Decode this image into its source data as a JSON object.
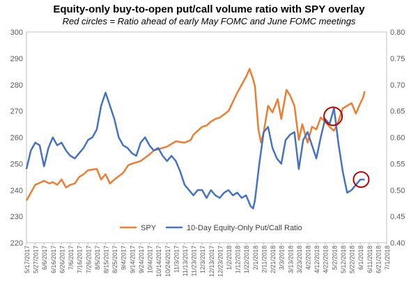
{
  "chart_data": {
    "type": "line",
    "title": "Equity-only buy-to-open put/call volume ratio with SPY overlay",
    "subtitle": "Red circles = Ratio ahead of early May FOMC and June FOMC meetings",
    "left_axis": {
      "min": 220,
      "max": 300,
      "ticks": [
        "220",
        "230",
        "240",
        "250",
        "260",
        "270",
        "280",
        "290",
        "300"
      ]
    },
    "right_axis": {
      "min": 0.4,
      "max": 0.8,
      "ticks": [
        "0.40",
        "0.45",
        "0.50",
        "0.55",
        "0.60",
        "0.65",
        "0.70",
        "0.75",
        "0.80"
      ]
    },
    "x_ticks": [
      "5/17/2017",
      "5/27/2017",
      "6/6/2017",
      "6/16/2017",
      "6/26/2017",
      "7/6/2017",
      "7/16/2017",
      "7/26/2017",
      "8/5/2017",
      "8/15/2017",
      "8/25/2017",
      "9/4/2017",
      "9/14/2017",
      "9/24/2017",
      "10/4/2017",
      "10/14/2017",
      "10/24/2017",
      "11/3/2017",
      "11/13/2017",
      "11/23/2017",
      "12/3/2017",
      "12/13/2017",
      "12/23/2017",
      "1/2/2018",
      "1/12/2018",
      "1/22/2018",
      "2/1/2018",
      "2/11/2018",
      "2/21/2018",
      "3/3/2018",
      "3/13/2018",
      "3/23/2018",
      "4/2/2018",
      "4/12/2018",
      "4/22/2018",
      "5/2/2018",
      "5/12/2018",
      "5/22/2018",
      "6/1/2018",
      "6/11/2018",
      "6/21/2018",
      "7/1/2018"
    ],
    "legend_position": "bottom-center",
    "grid": false,
    "series": [
      {
        "name": "SPY",
        "axis": "left",
        "color": "#ED7D31",
        "points": [
          [
            "5/17/2017",
            236
          ],
          [
            "5/22/2017",
            239
          ],
          [
            "5/27/2017",
            242
          ],
          [
            "6/6/2017",
            243.5
          ],
          [
            "6/12/2017",
            242.5
          ],
          [
            "6/16/2017",
            243
          ],
          [
            "6/21/2017",
            242
          ],
          [
            "6/26/2017",
            244
          ],
          [
            "7/1/2017",
            241
          ],
          [
            "7/6/2017",
            242
          ],
          [
            "7/11/2017",
            242.5
          ],
          [
            "7/16/2017",
            245
          ],
          [
            "7/21/2017",
            246
          ],
          [
            "7/26/2017",
            247.5
          ],
          [
            "8/5/2017",
            248
          ],
          [
            "8/10/2017",
            244
          ],
          [
            "8/15/2017",
            246
          ],
          [
            "8/20/2017",
            242.5
          ],
          [
            "8/25/2017",
            244
          ],
          [
            "9/4/2017",
            246.5
          ],
          [
            "9/10/2017",
            249.5
          ],
          [
            "9/14/2017",
            250
          ],
          [
            "9/24/2017",
            251
          ],
          [
            "10/4/2017",
            253.5
          ],
          [
            "10/9/2017",
            255
          ],
          [
            "10/14/2017",
            255.5
          ],
          [
            "10/24/2017",
            256.5
          ],
          [
            "10/29/2017",
            257.5
          ],
          [
            "11/3/2017",
            258.5
          ],
          [
            "11/13/2017",
            258
          ],
          [
            "11/20/2017",
            259
          ],
          [
            "11/23/2017",
            261
          ],
          [
            "12/3/2017",
            264
          ],
          [
            "12/8/2017",
            264.5
          ],
          [
            "12/13/2017",
            266
          ],
          [
            "12/18/2017",
            267
          ],
          [
            "12/23/2017",
            267.5
          ],
          [
            "1/2/2018",
            270
          ],
          [
            "1/7/2018",
            273.5
          ],
          [
            "1/12/2018",
            277
          ],
          [
            "1/17/2018",
            280
          ],
          [
            "1/22/2018",
            283
          ],
          [
            "1/26/2018",
            286
          ],
          [
            "1/30/2018",
            282
          ],
          [
            "2/1/2018",
            279.5
          ],
          [
            "2/5/2018",
            263
          ],
          [
            "2/8/2018",
            258
          ],
          [
            "2/11/2018",
            262
          ],
          [
            "2/16/2018",
            272
          ],
          [
            "2/21/2018",
            269.5
          ],
          [
            "2/27/2018",
            274.5
          ],
          [
            "3/3/2018",
            267
          ],
          [
            "3/9/2018",
            278
          ],
          [
            "3/13/2018",
            276
          ],
          [
            "3/18/2018",
            272
          ],
          [
            "3/23/2018",
            259
          ],
          [
            "3/27/2018",
            265
          ],
          [
            "4/2/2018",
            258
          ],
          [
            "4/7/2018",
            264
          ],
          [
            "4/12/2018",
            263
          ],
          [
            "4/17/2018",
            267.5
          ],
          [
            "4/22/2018",
            266
          ],
          [
            "4/27/2018",
            264
          ],
          [
            "5/2/2018",
            262.5
          ],
          [
            "5/7/2018",
            266
          ],
          [
            "5/12/2018",
            271
          ],
          [
            "5/17/2018",
            272
          ],
          [
            "5/22/2018",
            273
          ],
          [
            "5/27/2018",
            269
          ],
          [
            "6/1/2018",
            273
          ],
          [
            "6/4/2018",
            275
          ],
          [
            "6/6/2018",
            277.5
          ]
        ]
      },
      {
        "name": "10-Day Equity-Only Put/Call Ratio",
        "axis": "right",
        "color": "#4472C4",
        "points": [
          [
            "5/17/2017",
            0.54
          ],
          [
            "5/22/2017",
            0.575
          ],
          [
            "5/27/2017",
            0.59
          ],
          [
            "6/1/2017",
            0.585
          ],
          [
            "6/6/2017",
            0.545
          ],
          [
            "6/11/2017",
            0.58
          ],
          [
            "6/16/2017",
            0.6
          ],
          [
            "6/21/2017",
            0.585
          ],
          [
            "6/26/2017",
            0.59
          ],
          [
            "7/1/2017",
            0.575
          ],
          [
            "7/6/2017",
            0.565
          ],
          [
            "7/11/2017",
            0.56
          ],
          [
            "7/16/2017",
            0.57
          ],
          [
            "7/21/2017",
            0.58
          ],
          [
            "7/26/2017",
            0.595
          ],
          [
            "7/31/2017",
            0.6
          ],
          [
            "8/5/2017",
            0.615
          ],
          [
            "8/10/2017",
            0.66
          ],
          [
            "8/15/2017",
            0.685
          ],
          [
            "8/20/2017",
            0.66
          ],
          [
            "8/25/2017",
            0.635
          ],
          [
            "8/30/2017",
            0.6
          ],
          [
            "9/4/2017",
            0.585
          ],
          [
            "9/9/2017",
            0.58
          ],
          [
            "9/14/2017",
            0.57
          ],
          [
            "9/19/2017",
            0.565
          ],
          [
            "9/24/2017",
            0.59
          ],
          [
            "9/29/2017",
            0.6
          ],
          [
            "10/4/2017",
            0.585
          ],
          [
            "10/9/2017",
            0.575
          ],
          [
            "10/14/2017",
            0.58
          ],
          [
            "10/19/2017",
            0.565
          ],
          [
            "10/24/2017",
            0.555
          ],
          [
            "10/29/2017",
            0.565
          ],
          [
            "11/3/2017",
            0.555
          ],
          [
            "11/8/2017",
            0.535
          ],
          [
            "11/13/2017",
            0.51
          ],
          [
            "11/18/2017",
            0.5
          ],
          [
            "11/23/2017",
            0.49
          ],
          [
            "11/28/2017",
            0.5
          ],
          [
            "12/3/2017",
            0.5
          ],
          [
            "12/8/2017",
            0.485
          ],
          [
            "12/13/2017",
            0.5
          ],
          [
            "12/18/2017",
            0.49
          ],
          [
            "12/23/2017",
            0.485
          ],
          [
            "12/28/2017",
            0.495
          ],
          [
            "1/2/2018",
            0.5
          ],
          [
            "1/7/2018",
            0.49
          ],
          [
            "1/12/2018",
            0.495
          ],
          [
            "1/17/2018",
            0.485
          ],
          [
            "1/22/2018",
            0.49
          ],
          [
            "1/27/2018",
            0.47
          ],
          [
            "1/30/2018",
            0.465
          ],
          [
            "2/1/2018",
            0.48
          ],
          [
            "2/6/2018",
            0.55
          ],
          [
            "2/11/2018",
            0.61
          ],
          [
            "2/16/2018",
            0.62
          ],
          [
            "2/21/2018",
            0.58
          ],
          [
            "2/26/2018",
            0.56
          ],
          [
            "3/3/2018",
            0.55
          ],
          [
            "3/8/2018",
            0.595
          ],
          [
            "3/13/2018",
            0.605
          ],
          [
            "3/18/2018",
            0.61
          ],
          [
            "3/23/2018",
            0.54
          ],
          [
            "3/28/2018",
            0.595
          ],
          [
            "4/2/2018",
            0.61
          ],
          [
            "4/7/2018",
            0.585
          ],
          [
            "4/12/2018",
            0.56
          ],
          [
            "4/17/2018",
            0.6
          ],
          [
            "4/22/2018",
            0.635
          ],
          [
            "4/27/2018",
            0.625
          ],
          [
            "5/2/2018",
            0.655
          ],
          [
            "5/4/2018",
            0.63
          ],
          [
            "5/7/2018",
            0.59
          ],
          [
            "5/12/2018",
            0.535
          ],
          [
            "5/17/2018",
            0.495
          ],
          [
            "5/22/2018",
            0.5
          ],
          [
            "5/27/2018",
            0.51
          ],
          [
            "6/1/2018",
            0.52
          ],
          [
            "6/6/2018",
            0.52
          ]
        ]
      }
    ],
    "annotations": [
      {
        "type": "circle",
        "color": "#C00000",
        "near_date": "5/1/2018",
        "near_ratio": 0.64
      },
      {
        "type": "circle",
        "color": "#C00000",
        "near_date": "6/2/2018",
        "near_ratio": 0.52
      }
    ]
  }
}
